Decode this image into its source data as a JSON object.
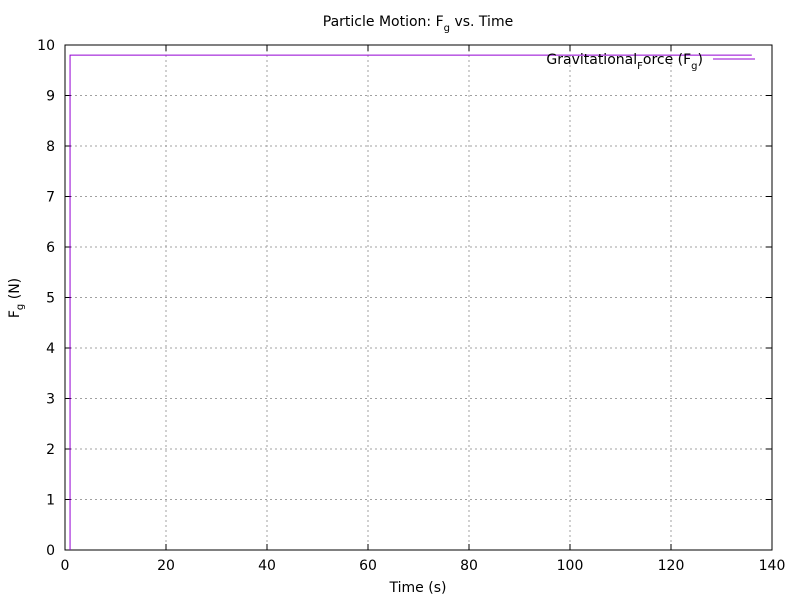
{
  "chart_data": {
    "type": "line",
    "title": {
      "prefix": "Particle Motion: F",
      "sub": "g",
      "suffix": " vs. Time"
    },
    "xlabel": "Time (s)",
    "ylabel": {
      "main": "F",
      "sub": "g",
      "suffix": " (N)"
    },
    "xlim": [
      0,
      140
    ],
    "ylim": [
      0,
      10
    ],
    "xticks": [
      0,
      20,
      40,
      60,
      80,
      100,
      120,
      140
    ],
    "yticks": [
      0,
      1,
      2,
      3,
      4,
      5,
      6,
      7,
      8,
      9,
      10
    ],
    "grid": true,
    "legend_position": "top-right",
    "series": [
      {
        "name_parts": {
          "a": "Gravitational",
          "a_sub": "F",
          "b": "orce (F",
          "b_sub": "g",
          "c": ")"
        },
        "color": "#9400d3",
        "x": [
          1,
          1,
          136
        ],
        "y": [
          0,
          9.8,
          9.8
        ]
      }
    ]
  }
}
